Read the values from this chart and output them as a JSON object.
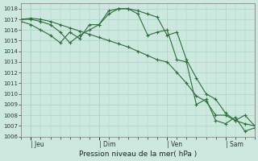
{
  "background_color": "#cce8df",
  "grid_color": "#aad4c8",
  "line_color": "#2d6e3a",
  "title": "Pression niveau de la mer( hPa )",
  "ylim": [
    1006,
    1018.5
  ],
  "yticks": [
    1006,
    1007,
    1008,
    1009,
    1010,
    1011,
    1012,
    1013,
    1014,
    1015,
    1016,
    1017,
    1018
  ],
  "day_labels": [
    "| Jeu",
    "| Dim",
    "| Ven",
    "| Sam"
  ],
  "day_positions": [
    0.0417,
    0.333,
    0.625,
    0.875
  ],
  "xlim": [
    0,
    1.0
  ],
  "series1_x": [
    0.0,
    0.042,
    0.083,
    0.125,
    0.167,
    0.208,
    0.25,
    0.292,
    0.333,
    0.375,
    0.417,
    0.458,
    0.5,
    0.542,
    0.583,
    0.625,
    0.667,
    0.708,
    0.75,
    0.792,
    0.833,
    0.875,
    0.917,
    0.958,
    1.0
  ],
  "series1_y": [
    1017.0,
    1017.1,
    1017.0,
    1016.8,
    1016.5,
    1016.2,
    1015.9,
    1015.6,
    1015.3,
    1015.0,
    1014.7,
    1014.4,
    1014.0,
    1013.6,
    1013.2,
    1013.0,
    1012.0,
    1011.0,
    1009.8,
    1009.3,
    1008.0,
    1008.0,
    1007.5,
    1007.2,
    1007.0
  ],
  "series2_x": [
    0.0,
    0.042,
    0.083,
    0.125,
    0.167,
    0.208,
    0.25,
    0.292,
    0.333,
    0.375,
    0.417,
    0.458,
    0.5,
    0.542,
    0.583,
    0.625,
    0.667,
    0.708,
    0.75,
    0.792,
    0.833,
    0.875,
    0.917,
    0.958,
    1.0
  ],
  "series2_y": [
    1017.0,
    1017.0,
    1016.8,
    1016.5,
    1015.8,
    1014.8,
    1015.5,
    1016.0,
    1016.5,
    1017.8,
    1018.0,
    1018.0,
    1017.8,
    1017.5,
    1017.2,
    1015.5,
    1015.8,
    1013.2,
    1011.5,
    1010.0,
    1009.5,
    1008.2,
    1007.5,
    1008.0,
    1007.0
  ],
  "series3_x": [
    0.0,
    0.042,
    0.083,
    0.125,
    0.167,
    0.208,
    0.25,
    0.292,
    0.333,
    0.375,
    0.417,
    0.458,
    0.5,
    0.542,
    0.583,
    0.625,
    0.667,
    0.708,
    0.75,
    0.792,
    0.833,
    0.875,
    0.917,
    0.958,
    1.0
  ],
  "series3_y": [
    1016.8,
    1016.5,
    1016.0,
    1015.5,
    1014.8,
    1015.8,
    1015.2,
    1016.5,
    1016.5,
    1017.5,
    1018.0,
    1018.0,
    1017.5,
    1015.5,
    1015.8,
    1016.0,
    1013.2,
    1013.0,
    1009.0,
    1009.5,
    1007.5,
    1007.2,
    1007.8,
    1006.5,
    1006.8
  ]
}
